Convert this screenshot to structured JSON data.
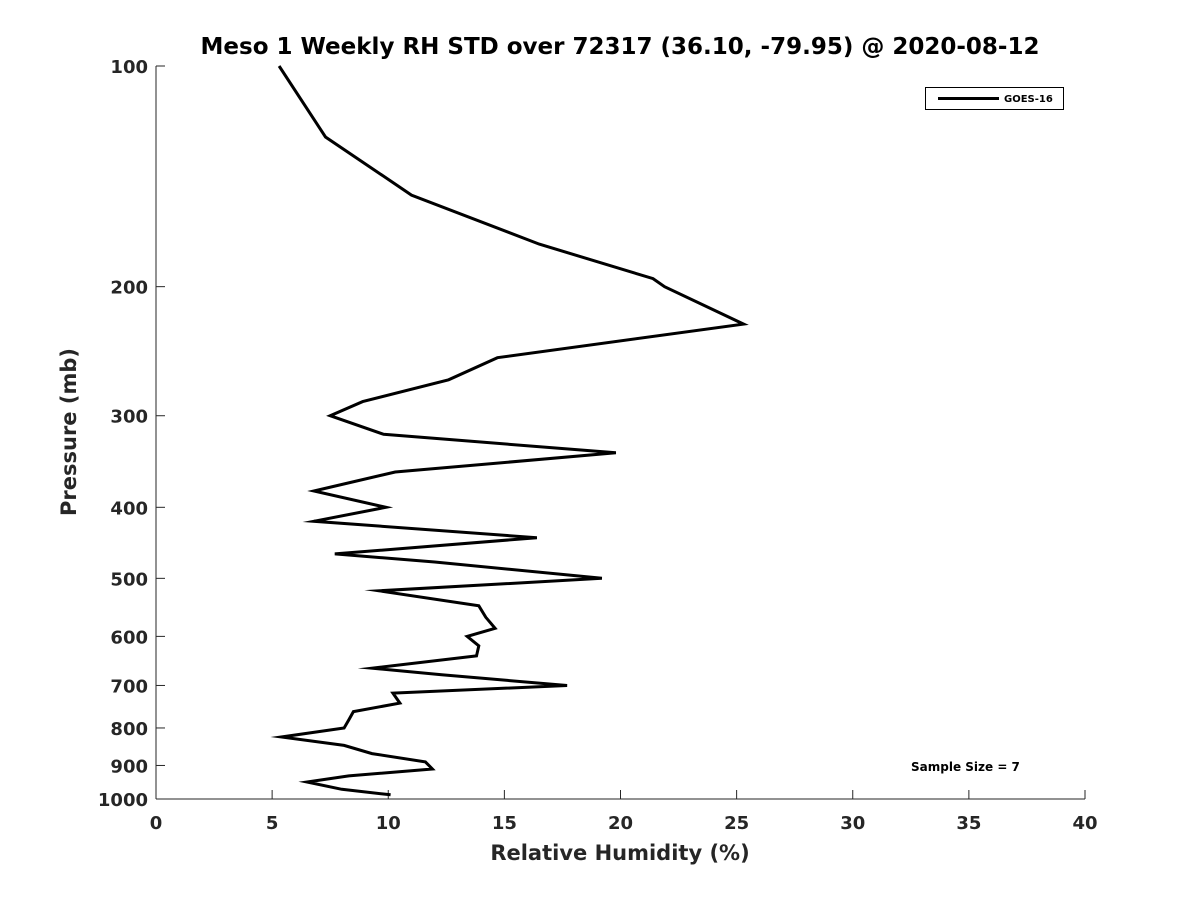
{
  "chart_data": {
    "type": "line",
    "title": "Meso 1 Weekly RH STD over 72317 (36.10, -79.95) @ 2020-08-12",
    "xlabel": "Relative Humidity (%)",
    "ylabel": "Pressure (mb)",
    "xlim": [
      0,
      40
    ],
    "ylim": [
      100,
      1000
    ],
    "y_scale": "log",
    "y_reversed": true,
    "grid": false,
    "legend_position": "top-right",
    "x_ticks": [
      0,
      5,
      10,
      15,
      20,
      25,
      30,
      35,
      40
    ],
    "y_ticks": [
      100,
      200,
      300,
      400,
      500,
      600,
      700,
      800,
      900,
      1000
    ],
    "annotation": "Sample Size = 7",
    "series": [
      {
        "name": "GOES-16",
        "color": "#000000",
        "points": [
          [
            5.3,
            100
          ],
          [
            7.3,
            125
          ],
          [
            11.0,
            150
          ],
          [
            16.5,
            175
          ],
          [
            21.4,
            195
          ],
          [
            21.9,
            200
          ],
          [
            25.3,
            225
          ],
          [
            14.7,
            250
          ],
          [
            12.6,
            268
          ],
          [
            8.9,
            287
          ],
          [
            7.5,
            300
          ],
          [
            9.8,
            318
          ],
          [
            19.8,
            337
          ],
          [
            10.3,
            358
          ],
          [
            6.8,
            380
          ],
          [
            9.9,
            400
          ],
          [
            6.8,
            418
          ],
          [
            16.4,
            440
          ],
          [
            7.7,
            463
          ],
          [
            12.0,
            475
          ],
          [
            19.2,
            500
          ],
          [
            9.6,
            520
          ],
          [
            13.9,
            545
          ],
          [
            14.2,
            565
          ],
          [
            14.6,
            585
          ],
          [
            13.4,
            600
          ],
          [
            13.9,
            618
          ],
          [
            13.8,
            638
          ],
          [
            9.3,
            663
          ],
          [
            12.3,
            677
          ],
          [
            17.7,
            700
          ],
          [
            10.2,
            717
          ],
          [
            10.5,
            740
          ],
          [
            8.5,
            760
          ],
          [
            8.3,
            780
          ],
          [
            8.1,
            800
          ],
          [
            5.4,
            823
          ],
          [
            8.1,
            845
          ],
          [
            9.3,
            867
          ],
          [
            11.6,
            890
          ],
          [
            11.9,
            910
          ],
          [
            8.3,
            930
          ],
          [
            6.5,
            948
          ],
          [
            8.0,
            970
          ],
          [
            10.1,
            987
          ]
        ]
      }
    ]
  }
}
